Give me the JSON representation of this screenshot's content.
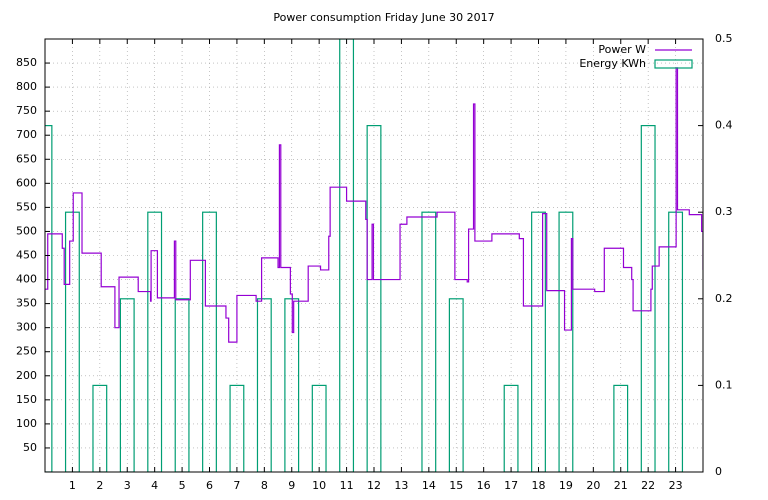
{
  "chart_data": {
    "type": "line",
    "title": "Power consumption Friday June 30 2017",
    "xlim": [
      0,
      24
    ],
    "xticks": [
      1,
      2,
      3,
      4,
      5,
      6,
      7,
      8,
      9,
      10,
      11,
      12,
      13,
      14,
      15,
      16,
      17,
      18,
      19,
      20,
      21,
      22,
      23
    ],
    "ylim": [
      0,
      900
    ],
    "yticks": [
      50,
      100,
      150,
      200,
      250,
      300,
      350,
      400,
      450,
      500,
      550,
      600,
      650,
      700,
      750,
      800,
      850
    ],
    "y2lim": [
      0,
      0.5
    ],
    "y2ticks": [
      0,
      0.1,
      0.2,
      0.3,
      0.4,
      0.5
    ],
    "grid": true,
    "legend": "top-right",
    "step": true,
    "series": [
      {
        "name": "Power W",
        "color": "#9400d3",
        "x": [
          0,
          0.1,
          0.63,
          0.7,
          0.9,
          1.03,
          1.35,
          2.05,
          2.55,
          2.7,
          3.4,
          3.85,
          3.87,
          4.1,
          4.72,
          4.77,
          5.3,
          5.85,
          6.6,
          6.7,
          7.0,
          7.7,
          7.9,
          8.5,
          8.55,
          8.6,
          8.95,
          9.02,
          9.07,
          9.6,
          10.05,
          10.35,
          10.4,
          11.0,
          11.7,
          11.75,
          11.93,
          11.98,
          12.95,
          13.2,
          14.3,
          14.95,
          15.4,
          15.45,
          15.63,
          15.68,
          16.3,
          17.3,
          17.45,
          18.15,
          18.3,
          18.95,
          19.2,
          19.25,
          20.05,
          20.4,
          21.1,
          21.4,
          21.45,
          22.1,
          22.15,
          22.4,
          23.02,
          23.07,
          23.5,
          23.95,
          24
        ],
        "values": [
          380,
          495,
          465,
          390,
          480,
          580,
          455,
          385,
          300,
          405,
          375,
          355,
          460,
          362,
          480,
          358,
          440,
          345,
          320,
          270,
          367,
          355,
          445,
          425,
          680,
          425,
          370,
          290,
          355,
          428,
          420,
          490,
          592,
          563,
          525,
          400,
          515,
          400,
          515,
          530,
          540,
          400,
          395,
          505,
          765,
          480,
          495,
          485,
          345,
          537,
          377,
          295,
          485,
          380,
          375,
          465,
          425,
          400,
          335,
          380,
          428,
          468,
          840,
          545,
          535,
          500,
          420
        ]
      },
      {
        "name": "Energy KWh",
        "color": "#009e73",
        "axis": "y2",
        "type": "bar",
        "x": [
          0,
          1,
          2,
          3,
          4,
          5,
          6,
          7,
          8,
          9,
          10,
          11,
          12,
          13,
          14,
          15,
          16,
          17,
          18,
          19,
          20,
          21,
          22,
          23
        ],
        "values": [
          0.4,
          0.3,
          0.1,
          0.2,
          0.3,
          0.2,
          0.3,
          0.1,
          0.2,
          0.2,
          0.1,
          0.5,
          0.4,
          0,
          0.3,
          0.2,
          0,
          0.1,
          0.3,
          0.3,
          0,
          0.1,
          0.4,
          0.3
        ]
      }
    ]
  }
}
